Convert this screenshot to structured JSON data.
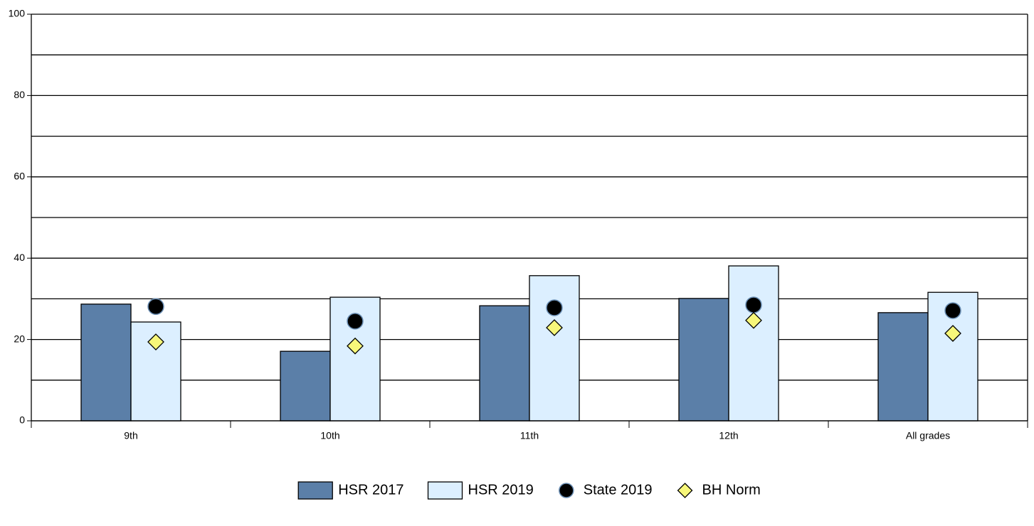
{
  "chart_data": {
    "type": "bar",
    "categories": [
      "9th",
      "10th",
      "11th",
      "12th",
      "All grades"
    ],
    "series": [
      {
        "name": "HSR 2017",
        "color": "#5b7fa8",
        "values": [
          28.7,
          17.1,
          28.3,
          30.1,
          26.6
        ]
      },
      {
        "name": "HSR 2019",
        "color": "#dcefff",
        "values": [
          24.3,
          30.4,
          35.7,
          38.1,
          31.6
        ]
      },
      {
        "name": "State 2019",
        "color": "#000000",
        "marker": "circle",
        "values": [
          28.1,
          24.5,
          27.8,
          28.5,
          27.1
        ]
      },
      {
        "name": "BH Norm",
        "color": "#f7f77a",
        "marker": "diamond",
        "values": [
          19.4,
          18.4,
          22.9,
          24.7,
          21.5
        ]
      }
    ],
    "ylim": [
      0,
      100
    ],
    "yticks": [
      0,
      20,
      40,
      60,
      80,
      100
    ],
    "minor_grid": [
      10,
      30,
      50,
      70,
      90
    ],
    "grid": true,
    "legend": "bottom"
  }
}
